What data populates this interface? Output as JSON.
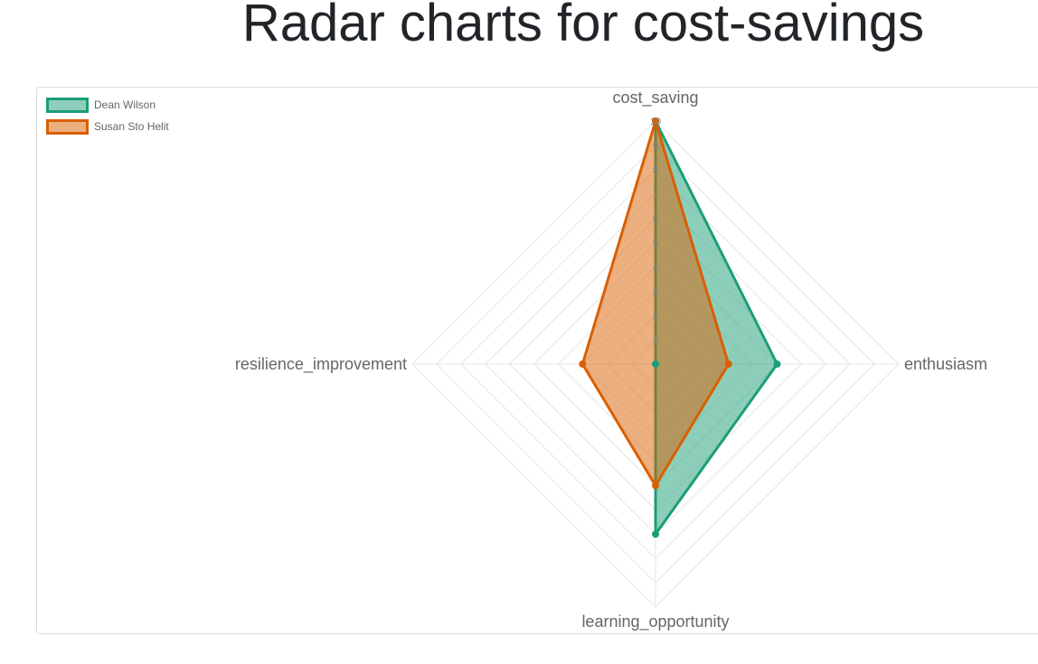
{
  "page": {
    "title": "Radar charts for cost-savings"
  },
  "chart_data": {
    "type": "radar",
    "title": "Radar charts for cost-savings",
    "axes": [
      "cost_saving",
      "enthusiasm",
      "learning_opportunity",
      "resilience_improvement"
    ],
    "rlim": [
      0,
      10
    ],
    "ticks": [
      "0",
      "1",
      "2",
      "3",
      "4",
      "5",
      "6",
      "7",
      "8",
      "9",
      "10"
    ],
    "grid": true,
    "legend_position": "top-left",
    "series": [
      {
        "name": "Dean Wilson",
        "values": [
          10,
          5,
          7,
          0
        ],
        "stroke": "#1b9e77",
        "fill": "rgba(27,158,119,0.5)"
      },
      {
        "name": "Susan Sto Helit",
        "values": [
          10,
          3,
          5,
          3
        ],
        "stroke": "#d95f02",
        "fill": "rgba(217,95,2,0.5)"
      }
    ]
  }
}
